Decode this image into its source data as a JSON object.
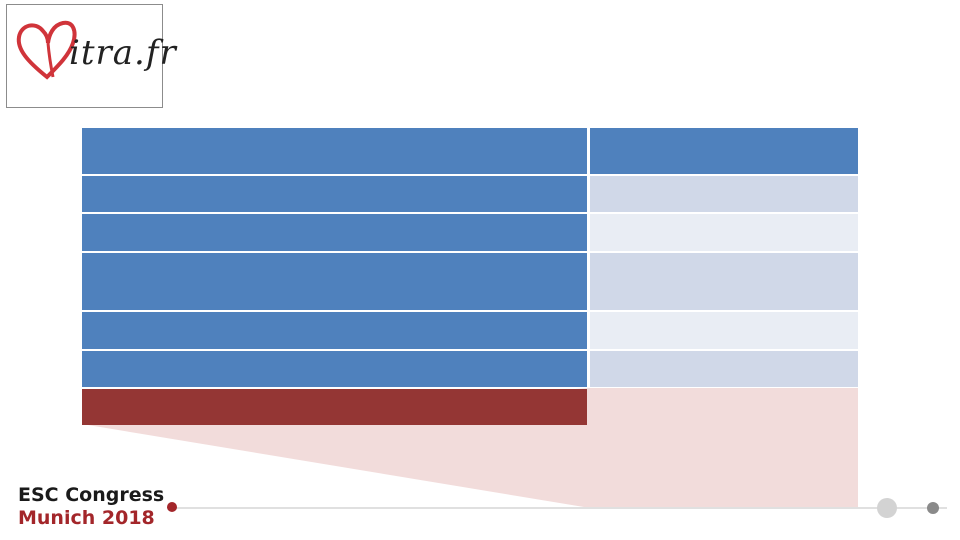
{
  "logo": {
    "text": "itra.fr",
    "icon": "heart-icon",
    "colors": {
      "heart": "#d0343a",
      "text": "#222222"
    }
  },
  "table": {
    "header": {
      "left": "",
      "right": ""
    },
    "rows": [
      {
        "left": "",
        "right": ""
      },
      {
        "left": "",
        "right": ""
      },
      {
        "left": "",
        "right": ""
      },
      {
        "left": "",
        "right": ""
      },
      {
        "left": "",
        "right": ""
      }
    ],
    "highlight_row": {
      "left": "",
      "right": ""
    },
    "colors": {
      "header": "#4f81bd",
      "label_cells": "#4f81bd",
      "value_band_dark": "#d0d8e8",
      "value_band_light": "#e9edf4",
      "highlight": "#943634",
      "callout": "#f2dcdb"
    }
  },
  "footer": {
    "title": "ESC Congress",
    "subtitle": "Munich 2018",
    "colors": {
      "accent": "#a3262a",
      "title": "#1a1a1a",
      "timeline": "#e0e0e0"
    }
  }
}
